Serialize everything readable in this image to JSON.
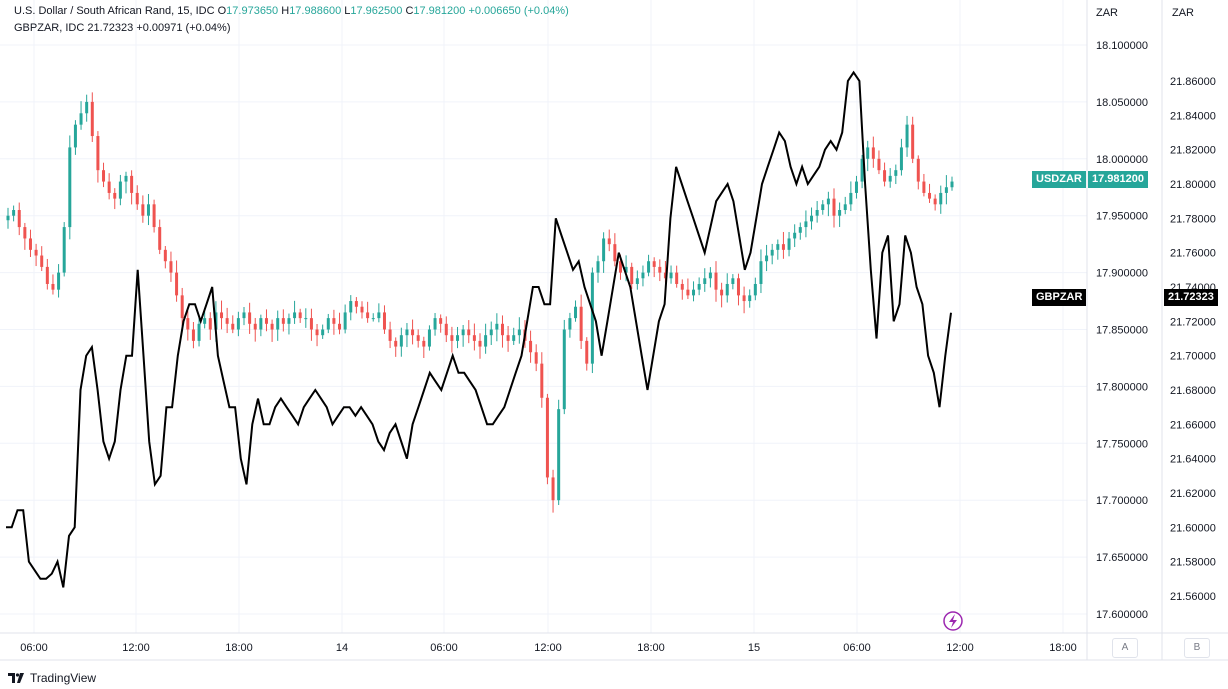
{
  "header": {
    "symbol1_name": "U.S. Dollar / South African Rand, 15, IDC",
    "o_label": "O",
    "o_value": "17.973650",
    "h_label": "H",
    "h_value": "17.988600",
    "l_label": "L",
    "l_value": "17.962500",
    "c_label": "C",
    "c_value": "17.981200",
    "change": "+0.006650 (+0.04%)",
    "symbol2_line": "GBPZAR, IDC",
    "symbol2_value": "21.72323",
    "symbol2_change": "+0.00971 (+0.04%)"
  },
  "axes": {
    "right_a_unit": "ZAR",
    "right_b_unit": "ZAR",
    "scale_a_label": "A",
    "scale_b_label": "B"
  },
  "price_labels": {
    "usdzar_name": "USDZAR",
    "usdzar_value": "17.981200",
    "gbpzar_name": "GBPZAR",
    "gbpzar_value": "21.72323"
  },
  "branding": {
    "name": "TradingView"
  },
  "colors": {
    "up": "#26a69a",
    "down": "#ef5350",
    "line": "#000000",
    "grid": "#f0f3fa"
  },
  "chart_data": {
    "type": "line",
    "x_ticks": [
      "06:00",
      "12:00",
      "18:00",
      "14",
      "06:00",
      "12:00",
      "18:00",
      "15",
      "06:00",
      "12:00",
      "18:00"
    ],
    "y_left_ticks": [
      "18.100000",
      "18.050000",
      "18.000000",
      "17.950000",
      "17.900000",
      "17.850000",
      "17.800000",
      "17.750000",
      "17.700000",
      "17.650000",
      "17.600000"
    ],
    "y_right_ticks": [
      "21.86000",
      "21.84000",
      "21.82000",
      "21.80000",
      "21.78000",
      "21.76000",
      "21.74000",
      "21.72000",
      "21.70000",
      "21.68000",
      "21.66000",
      "21.64000",
      "21.62000",
      "21.60000",
      "21.58000",
      "21.56000"
    ],
    "ylim_usdzar": [
      17.585,
      18.115
    ],
    "ylim_gbpzar": [
      21.543,
      21.87
    ],
    "series": [
      {
        "name": "USDZAR",
        "kind": "candlestick",
        "close_points": [
          17.95,
          17.955,
          17.94,
          17.93,
          17.92,
          17.915,
          17.905,
          17.89,
          17.885,
          17.9,
          17.94,
          18.01,
          18.03,
          18.04,
          18.05,
          18.02,
          17.99,
          17.98,
          17.97,
          17.965,
          17.98,
          17.985,
          17.97,
          17.96,
          17.95,
          17.96,
          17.94,
          17.92,
          17.91,
          17.9,
          17.88,
          17.86,
          17.85,
          17.84,
          17.855,
          17.86,
          17.85,
          17.865,
          17.86,
          17.855,
          17.85,
          17.86,
          17.865,
          17.855,
          17.85,
          17.86,
          17.855,
          17.85,
          17.86,
          17.855,
          17.86,
          17.865,
          17.86,
          17.86,
          17.85,
          17.845,
          17.85,
          17.86,
          17.855,
          17.85,
          17.865,
          17.875,
          17.87,
          17.865,
          17.86,
          17.86,
          17.865,
          17.85,
          17.84,
          17.835,
          17.845,
          17.85,
          17.845,
          17.84,
          17.835,
          17.85,
          17.86,
          17.855,
          17.845,
          17.84,
          17.845,
          17.85,
          17.845,
          17.84,
          17.835,
          17.845,
          17.85,
          17.855,
          17.845,
          17.84,
          17.845,
          17.85,
          17.84,
          17.83,
          17.82,
          17.79,
          17.72,
          17.7,
          17.78,
          17.85,
          17.86,
          17.87,
          17.84,
          17.82,
          17.9,
          17.91,
          17.93,
          17.925,
          17.91,
          17.9,
          17.905,
          17.89,
          17.895,
          17.9,
          17.91,
          17.905,
          17.9,
          17.895,
          17.9,
          17.89,
          17.885,
          17.88,
          17.885,
          17.89,
          17.895,
          17.9,
          17.885,
          17.88,
          17.89,
          17.895,
          17.88,
          17.875,
          17.88,
          17.89,
          17.91,
          17.915,
          17.92,
          17.925,
          17.92,
          17.93,
          17.935,
          17.94,
          17.945,
          17.95,
          17.955,
          17.96,
          17.965,
          17.95,
          17.955,
          17.96,
          17.97,
          17.98,
          18.0,
          18.01,
          18.0,
          17.99,
          17.98,
          17.985,
          17.99,
          18.01,
          18.03,
          18.0,
          17.98,
          17.97,
          17.965,
          17.96,
          17.97,
          17.975,
          17.98
        ]
      },
      {
        "name": "GBPZAR",
        "kind": "line",
        "points": [
          21.6,
          21.6,
          21.61,
          21.61,
          21.58,
          21.575,
          21.57,
          21.57,
          21.573,
          21.58,
          21.565,
          21.595,
          21.6,
          21.68,
          21.7,
          21.705,
          21.68,
          21.65,
          21.64,
          21.65,
          21.68,
          21.7,
          21.7,
          21.75,
          21.7,
          21.65,
          21.625,
          21.63,
          21.67,
          21.67,
          21.7,
          21.72,
          21.73,
          21.73,
          21.72,
          21.73,
          21.74,
          21.7,
          21.685,
          21.67,
          21.67,
          21.64,
          21.625,
          21.66,
          21.675,
          21.66,
          21.66,
          21.67,
          21.675,
          21.67,
          21.665,
          21.66,
          21.67,
          21.675,
          21.68,
          21.675,
          21.67,
          21.66,
          21.665,
          21.67,
          21.67,
          21.665,
          21.67,
          21.665,
          21.66,
          21.65,
          21.645,
          21.655,
          21.66,
          21.65,
          21.64,
          21.66,
          21.67,
          21.68,
          21.69,
          21.685,
          21.68,
          21.69,
          21.7,
          21.69,
          21.69,
          21.685,
          21.68,
          21.67,
          21.66,
          21.66,
          21.665,
          21.67,
          21.68,
          21.69,
          21.7,
          21.72,
          21.74,
          21.74,
          21.73,
          21.73,
          21.78,
          21.77,
          21.76,
          21.75,
          21.755,
          21.74,
          21.73,
          21.72,
          21.7,
          21.72,
          21.74,
          21.76,
          21.75,
          21.74,
          21.72,
          21.7,
          21.68,
          21.7,
          21.72,
          21.73,
          21.78,
          21.81,
          21.8,
          21.79,
          21.78,
          21.77,
          21.76,
          21.775,
          21.79,
          21.795,
          21.8,
          21.79,
          21.77,
          21.75,
          21.76,
          21.78,
          21.8,
          21.81,
          21.82,
          21.83,
          21.825,
          21.81,
          21.8,
          21.81,
          21.8,
          21.805,
          21.81,
          21.82,
          21.825,
          21.82,
          21.83,
          21.86,
          21.865,
          21.86,
          21.8,
          21.75,
          21.71,
          21.76,
          21.77,
          21.72,
          21.73,
          21.77,
          21.76,
          21.74,
          21.73,
          21.7,
          21.69,
          21.67,
          21.7,
          21.725
        ]
      }
    ],
    "grid": true,
    "legend": "top-left"
  }
}
